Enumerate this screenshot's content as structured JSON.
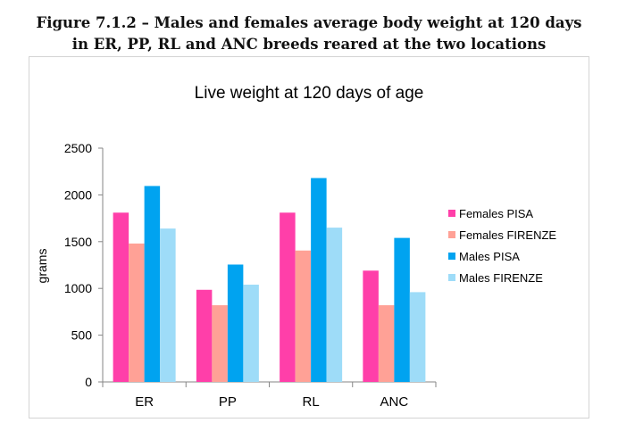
{
  "figure": {
    "caption_line1": "Figure 7.1.2 – Males and females average body weight at 120 days",
    "caption_line2": "in ER, PP, RL and ANC breeds reared at the two locations"
  },
  "chart_data": {
    "type": "bar",
    "title": "Live weight at 120 days of age",
    "xlabel": "",
    "ylabel": "grams",
    "ylim": [
      0,
      2500
    ],
    "yticks": [
      0,
      500,
      1000,
      1500,
      2000,
      2500
    ],
    "categories": [
      "ER",
      "PP",
      "RL",
      "ANC"
    ],
    "legend_position": "right",
    "grid": false,
    "series": [
      {
        "name": "Females PISA",
        "color": "#ff3fa9",
        "values": [
          1810,
          985,
          1810,
          1190
        ]
      },
      {
        "name": "Females FIRENZE",
        "color": "#ffa196",
        "values": [
          1480,
          820,
          1405,
          820
        ]
      },
      {
        "name": "Males PISA",
        "color": "#00a3f0",
        "values": [
          2095,
          1255,
          2180,
          1540
        ]
      },
      {
        "name": "Males FIRENZE",
        "color": "#9edcf8",
        "values": [
          1640,
          1040,
          1650,
          960
        ]
      }
    ]
  }
}
